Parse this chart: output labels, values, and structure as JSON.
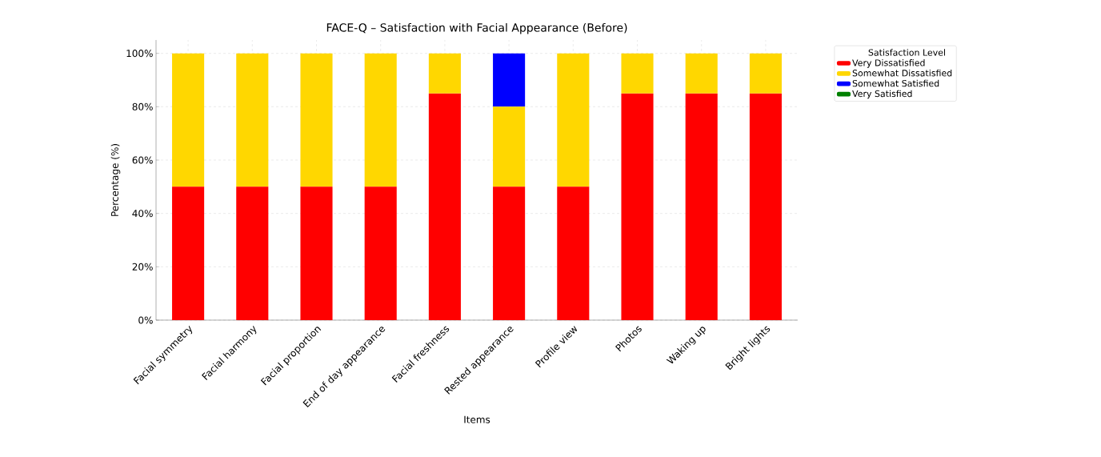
{
  "chart_data": {
    "type": "bar",
    "stacked": true,
    "title": "FACE-Q – Satisfaction with Facial Appearance (Before)",
    "xlabel": "Items",
    "ylabel": "Percentage (%)",
    "legend_title": "Satisfaction Level",
    "categories": [
      "Facial symmetry",
      "Facial harmony",
      "Facial proportion",
      "End of day appearance",
      "Facial freshness",
      "Rested appearance",
      "Profile view",
      "Photos",
      "Waking up",
      "Bright lights"
    ],
    "series": [
      {
        "name": "Very Dissatisfied",
        "color": "#ff0000",
        "values": [
          50,
          50,
          50,
          50,
          85,
          50,
          50,
          85,
          85,
          85
        ]
      },
      {
        "name": "Somewhat Dissatisfied",
        "color": "#ffd700",
        "values": [
          50,
          50,
          50,
          50,
          15,
          30,
          50,
          15,
          15,
          15
        ]
      },
      {
        "name": "Somewhat Satisfied",
        "color": "#0000ff",
        "values": [
          0,
          0,
          0,
          0,
          0,
          20,
          0,
          0,
          0,
          0
        ]
      },
      {
        "name": "Very Satisfied",
        "color": "#008000",
        "values": [
          0,
          0,
          0,
          0,
          0,
          0,
          0,
          0,
          0,
          0
        ]
      }
    ],
    "ylim": [
      0,
      105
    ],
    "yticks": [
      {
        "value": 0,
        "label": "0%"
      },
      {
        "value": 20,
        "label": "20%"
      },
      {
        "value": 40,
        "label": "40%"
      },
      {
        "value": 60,
        "label": "60%"
      },
      {
        "value": 80,
        "label": "80%"
      },
      {
        "value": 100,
        "label": "100%"
      }
    ],
    "grid": true,
    "legend": "top right"
  }
}
